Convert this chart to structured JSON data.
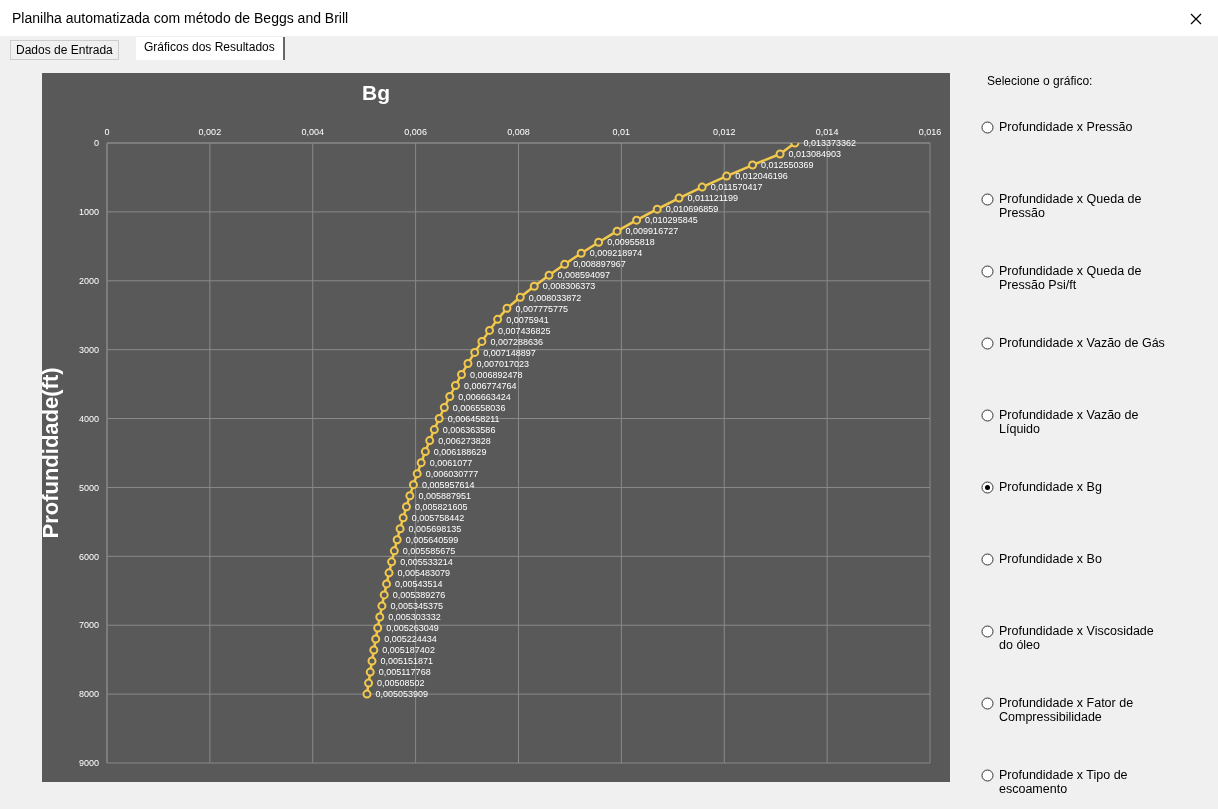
{
  "chart_data": {
    "type": "line",
    "orientation": "horizontal",
    "title": "Bg",
    "ylabel": "Profundidade(ft)",
    "values": [
      0.013373362,
      0.013084903,
      0.012550369,
      0.012046196,
      0.011570417,
      0.011121199,
      0.010696859,
      0.010295845,
      0.009916727,
      0.00955818,
      0.009218974,
      0.008897967,
      0.008594097,
      0.008306373,
      0.008033872,
      0.007775775,
      0.0075941,
      0.007436825,
      0.007288636,
      0.007148897,
      0.007017023,
      0.006892478,
      0.006774764,
      0.006663424,
      0.006558036,
      0.006458211,
      0.006363586,
      0.006273828,
      0.006188629,
      0.0061077,
      0.006030777,
      0.005957614,
      0.005887951,
      0.005821605,
      0.005758442,
      0.005698135,
      0.005640599,
      0.005585675,
      0.005533214,
      0.005483079,
      0.00543514,
      0.005389276,
      0.005345375,
      0.005303332,
      0.005263049,
      0.005224434,
      0.005187402,
      0.005151871,
      0.005117768,
      0.00508502,
      0.005053909
    ],
    "x": [
      0,
      160,
      320,
      480,
      640,
      800,
      960,
      1120,
      1280,
      1440,
      1600,
      1760,
      1920,
      2080,
      2240,
      2400,
      2560,
      2720,
      2880,
      3040,
      3200,
      3360,
      3520,
      3680,
      3840,
      4000,
      4160,
      4320,
      4480,
      4640,
      4800,
      4960,
      5120,
      5280,
      5440,
      5600,
      5760,
      5920,
      6080,
      6240,
      6400,
      6560,
      6720,
      6880,
      7040,
      7200,
      7360,
      7520,
      7680,
      7840,
      8000
    ],
    "value_labels": [
      "0,013373362",
      "0,013084903",
      "0,012550369",
      "0,012046196",
      "0,011570417",
      "0,011121199",
      "0,010696859",
      "0,010295845",
      "0,009916727",
      "0,00955818",
      "0,009218974",
      "0,008897967",
      "0,008594097",
      "0,008306373",
      "0,008033872",
      "0,007775775",
      "0,0075941",
      "0,007436825",
      "0,007288636",
      "0,007148897",
      "0,007017023",
      "0,006892478",
      "0,006774764",
      "0,006663424",
      "0,006558036",
      "0,006458211",
      "0,006363586",
      "0,006273828",
      "0,006188629",
      "0,0061077",
      "0,006030777",
      "0,005957614",
      "0,005887951",
      "0,005821605",
      "0,005758442",
      "0,005698135",
      "0,005640599",
      "0,005585675",
      "0,005533214",
      "0,005483079",
      "0,00543514",
      "0,005389276",
      "0,005345375",
      "0,005303332",
      "0,005263049",
      "0,005224434",
      "0,005187402",
      "0,005151871",
      "0,005117768",
      "0,00508502",
      "0,005053909"
    ],
    "color": "#f2c94c",
    "marker": "circle",
    "grid": true,
    "xlim": [
      0,
      0.016
    ],
    "xticks": [
      0,
      {
        "value": 0.002,
        "label": "0,002"
      },
      {
        "value": 0.004,
        "label": "0,004"
      },
      {
        "value": 0.006,
        "label": "0,006"
      },
      {
        "value": 0.008,
        "label": "0,008"
      },
      {
        "value": 0.01,
        "label": "0,01"
      },
      {
        "value": 0.012,
        "label": "0,012"
      },
      {
        "value": 0.014,
        "label": "0,014"
      },
      {
        "value": 0.016,
        "label": "0,016"
      }
    ],
    "ylim": [
      9000,
      0
    ],
    "yticks": [
      0,
      1000,
      2000,
      3000,
      4000,
      5000,
      6000,
      7000,
      8000,
      9000
    ],
    "annotations": [
      "Planilha automatizada com método de Beggs and Brill",
      "Dados de Entrada",
      "Gráficos dos Resultados",
      "Selecione o gráfico:",
      "Profundidade x Pressão",
      "Profundidade x Queda de Pressão",
      "Profundidade x Queda de Pressão Psi/ft",
      "Profundidade x Vazão de Gás",
      "Profundidade x Vazão de Líquido",
      "Profundidade x Bg",
      "Profundidade x Bo",
      "Profundidade x Viscosidade do óleo",
      "Profundidade x Fator de Compressibilidade",
      "Profundidade x Tipo de escoamento"
    ]
  }
}
